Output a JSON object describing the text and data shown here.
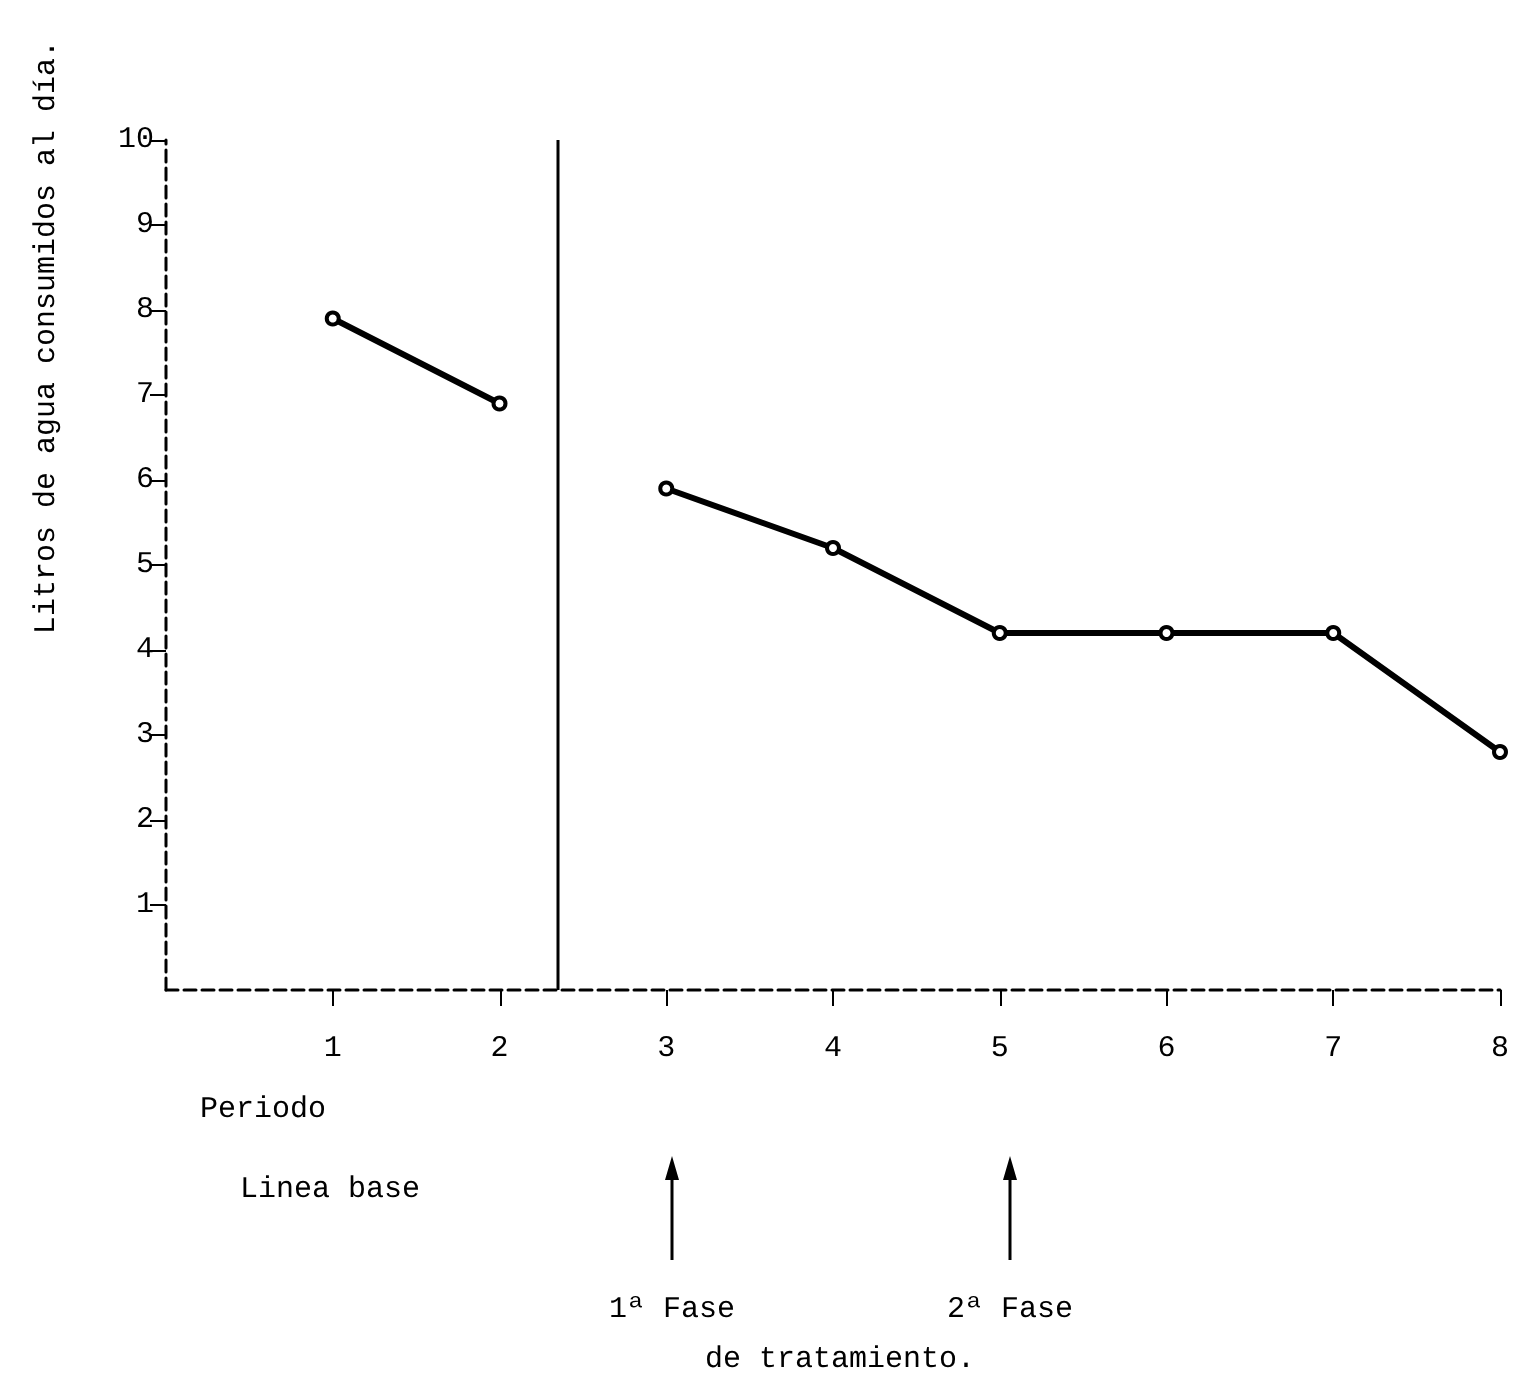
{
  "chart_data": {
    "type": "line",
    "ylabel": "Litros de agua consumidos al día.",
    "series": [
      {
        "color": "#000000",
        "x": [
          1,
          2
        ],
        "values": [
          7.9,
          6.9
        ]
      },
      {
        "color": "#000000",
        "x": [
          3,
          4,
          5,
          6,
          7,
          8
        ],
        "values": [
          5.9,
          5.2,
          4.2,
          4.2,
          4.2,
          2.8
        ]
      }
    ],
    "xlim": [
      0,
      8
    ],
    "xticks": [
      1,
      2,
      3,
      4,
      5,
      6,
      7,
      8
    ],
    "ylim": [
      0,
      10
    ],
    "yticks": [
      1,
      2,
      3,
      4,
      5,
      6,
      7,
      8,
      9,
      10
    ],
    "ref_lines": [
      {
        "axis": "x",
        "value": 2.35,
        "color": "#000000",
        "line_style": "solid"
      }
    ],
    "annotations": [
      "Periodo",
      "Linea base",
      "1ª Fase",
      "2ª Fase",
      "de tratamiento."
    ],
    "marker": "circle",
    "line_style": "solid"
  }
}
